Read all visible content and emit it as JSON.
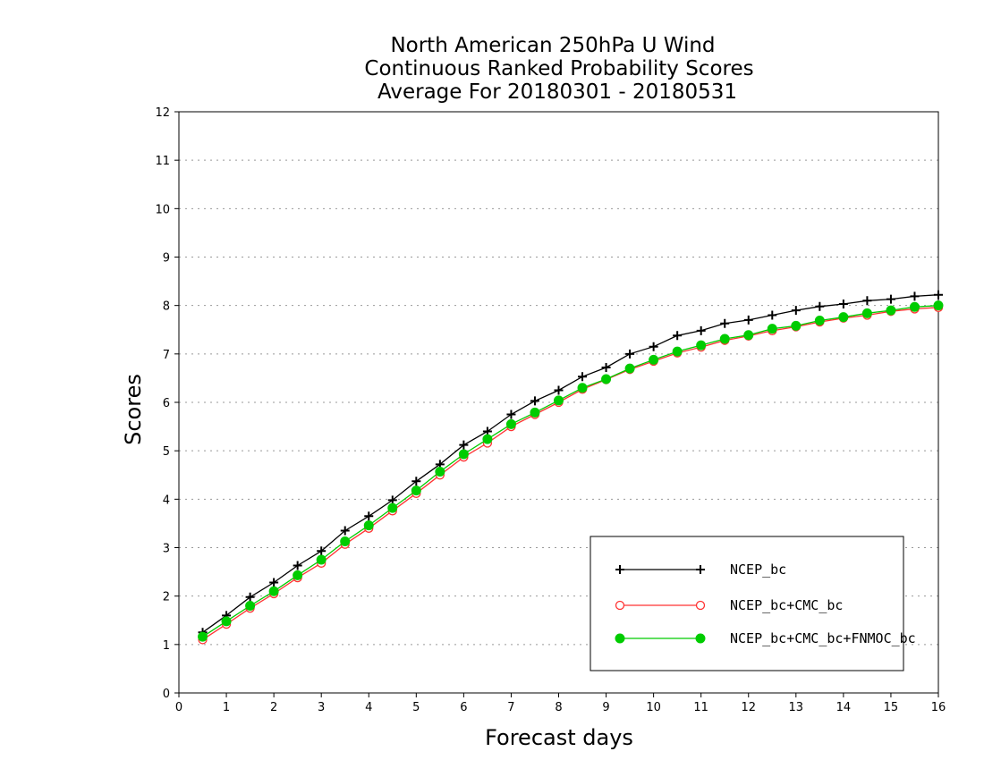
{
  "chart_data": {
    "type": "line",
    "title_lines": [
      "North American 250hPa U Wind",
      "Continuous Ranked Probability Scores",
      "Average For 20180301 - 20180531"
    ],
    "xlabel": "Forecast days",
    "ylabel": "Scores",
    "xlim": [
      0,
      16
    ],
    "ylim": [
      0,
      12
    ],
    "xticks": [
      "0",
      "1",
      "2",
      "3",
      "4",
      "5",
      "6",
      "7",
      "8",
      "9",
      "10",
      "11",
      "12",
      "13",
      "14",
      "15",
      "16"
    ],
    "yticks": [
      "0",
      "1",
      "2",
      "3",
      "4",
      "5",
      "6",
      "7",
      "8",
      "9",
      "10",
      "11",
      "12"
    ],
    "grid": "horizontal dotted",
    "legend_position": "bottom-right",
    "x": [
      0.5,
      1,
      1.5,
      2,
      2.5,
      3,
      3.5,
      4,
      4.5,
      5,
      5.5,
      6,
      6.5,
      7,
      7.5,
      8,
      8.5,
      9,
      9.5,
      10,
      10.5,
      11,
      11.5,
      12,
      12.5,
      13,
      13.5,
      14,
      14.5,
      15,
      15.5,
      16
    ],
    "series": [
      {
        "name": "NCEP_bc",
        "color": "#000000",
        "marker": "plus",
        "values": [
          1.25,
          1.6,
          1.98,
          2.28,
          2.63,
          2.93,
          3.35,
          3.65,
          3.98,
          4.37,
          4.72,
          5.12,
          5.4,
          5.75,
          6.03,
          6.25,
          6.53,
          6.72,
          7.0,
          7.15,
          7.38,
          7.48,
          7.63,
          7.7,
          7.8,
          7.9,
          7.98,
          8.03,
          8.1,
          8.13,
          8.19,
          8.22
        ]
      },
      {
        "name": "NCEP_bc+CMC_bc",
        "color": "#ff3333",
        "marker": "open-circle",
        "values": [
          1.1,
          1.42,
          1.75,
          2.05,
          2.38,
          2.68,
          3.07,
          3.4,
          3.76,
          4.12,
          4.5,
          4.87,
          5.16,
          5.5,
          5.75,
          6.0,
          6.27,
          6.47,
          6.68,
          6.85,
          7.02,
          7.14,
          7.28,
          7.37,
          7.48,
          7.56,
          7.66,
          7.74,
          7.8,
          7.88,
          7.93,
          7.96
        ]
      },
      {
        "name": "NCEP_bc+CMC_bc+FNMOC_bc",
        "color": "#00cc00",
        "marker": "filled-circle",
        "values": [
          1.16,
          1.48,
          1.8,
          2.1,
          2.43,
          2.75,
          3.13,
          3.46,
          3.82,
          4.18,
          4.57,
          4.93,
          5.24,
          5.55,
          5.79,
          6.04,
          6.3,
          6.48,
          6.7,
          6.88,
          7.05,
          7.18,
          7.31,
          7.39,
          7.52,
          7.58,
          7.69,
          7.76,
          7.84,
          7.9,
          7.97,
          8.0
        ]
      }
    ]
  }
}
